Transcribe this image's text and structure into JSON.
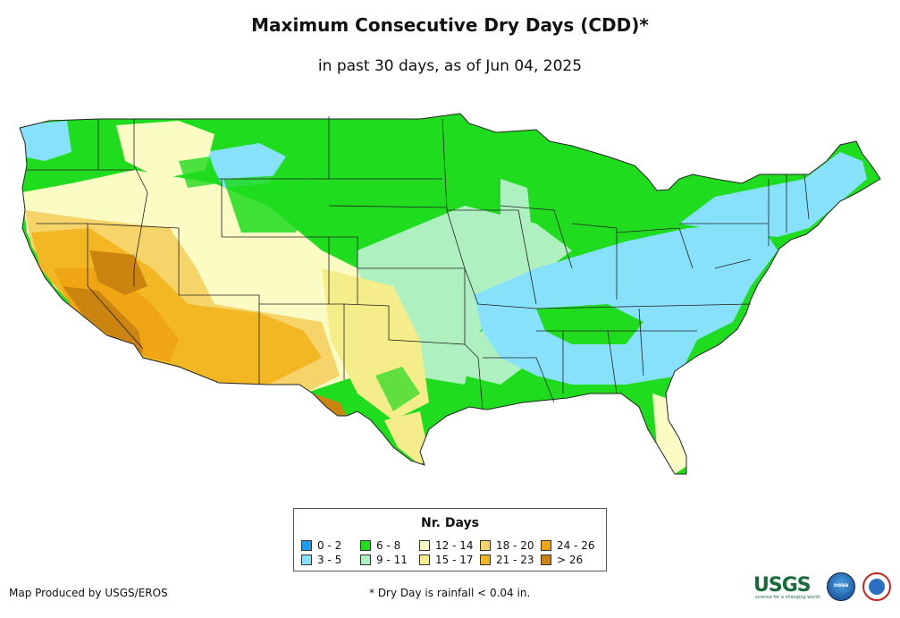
{
  "title": "Maximum Consecutive Dry Days (CDD)*",
  "subtitle": "in past 30 days, as of Jun 04, 2025",
  "legend": {
    "title": "Nr. Days",
    "items": [
      {
        "label": "0 - 2",
        "color": "#1e9af0"
      },
      {
        "label": "3 - 5",
        "color": "#87e1fb"
      },
      {
        "label": "6 - 8",
        "color": "#1fdc1f"
      },
      {
        "label": "9 - 11",
        "color": "#aef0c0"
      },
      {
        "label": "12 - 14",
        "color": "#fbfbc4"
      },
      {
        "label": "15 - 17",
        "color": "#f5ec8a"
      },
      {
        "label": "18 - 20",
        "color": "#f6d469"
      },
      {
        "label": "21 - 23",
        "color": "#f2b722"
      },
      {
        "label": "24 - 26",
        "color": "#f0a614"
      },
      {
        "label": "> 26",
        "color": "#cc8410"
      }
    ]
  },
  "credit": "Map Produced by USGS/EROS",
  "footnote": "* Dry Day is rainfall < 0.04 in.",
  "logos": {
    "usgs": "USGS",
    "usgs_tagline": "science for a changing world",
    "noaa": "noaa"
  }
}
